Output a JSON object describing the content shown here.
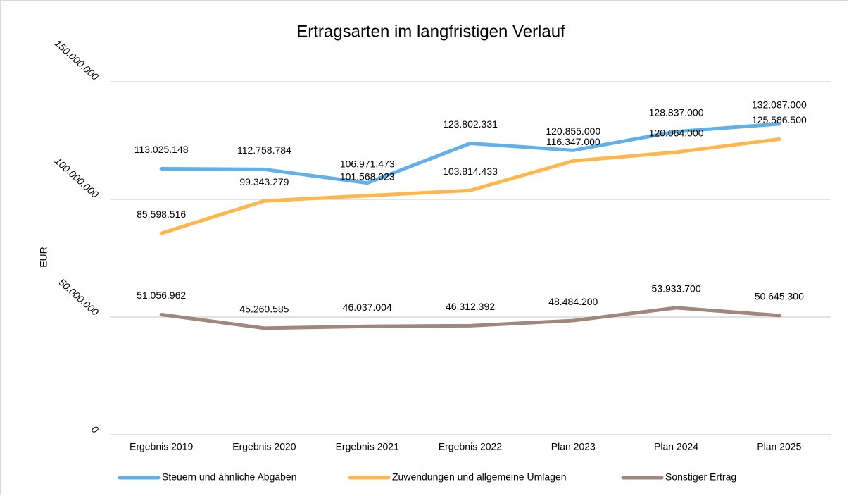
{
  "chart_data": {
    "type": "line",
    "title": "Ertragsarten im langfristigen Verlauf",
    "y_label": "EUR",
    "categories": [
      "Ergebnis 2019",
      "Ergebnis 2020",
      "Ergebnis 2021",
      "Ergebnis 2022",
      "Plan 2023",
      "Plan 2024",
      "Plan 2025"
    ],
    "series": [
      {
        "name": "Steuern und ähnliche Abgaben",
        "color": "#62b0e8",
        "values": [
          113025148,
          112758784,
          106971473,
          123802331,
          120855000,
          128837000,
          132087000
        ],
        "value_labels": [
          "113.025.148",
          "112.758.784",
          "106.971.473",
          "123.802.331",
          "120.855.000",
          "128.837.000",
          "132.087.000"
        ]
      },
      {
        "name": "Zuwendungen und allgemeine Umlagen",
        "color": "#ffb74d",
        "values": [
          85598516,
          99343279,
          101568023,
          103814433,
          116347000,
          120064000,
          125586500
        ],
        "value_labels": [
          "85.598.516",
          "99.343.279",
          "101.568.023",
          "103.814.433",
          "116.347.000",
          "120.064.000",
          "125.586.500"
        ]
      },
      {
        "name": "Sonstiger Ertrag",
        "color": "#a0877d",
        "values": [
          51056962,
          45260585,
          46037004,
          46312392,
          48484200,
          53933700,
          50645300
        ],
        "value_labels": [
          "51.056.962",
          "45.260.585",
          "46.037.004",
          "46.312.392",
          "48.484.200",
          "53.933.700",
          "50.645.300"
        ]
      }
    ],
    "ylim": [
      0,
      150000000
    ],
    "yticks": [
      0,
      {
        "value": 50000000,
        "label": "50.000.000"
      },
      {
        "value": 100000000,
        "label": "100.000.000"
      },
      {
        "value": 150000000,
        "label": "150.000.000"
      }
    ],
    "grid": true,
    "legend": "bottom"
  }
}
